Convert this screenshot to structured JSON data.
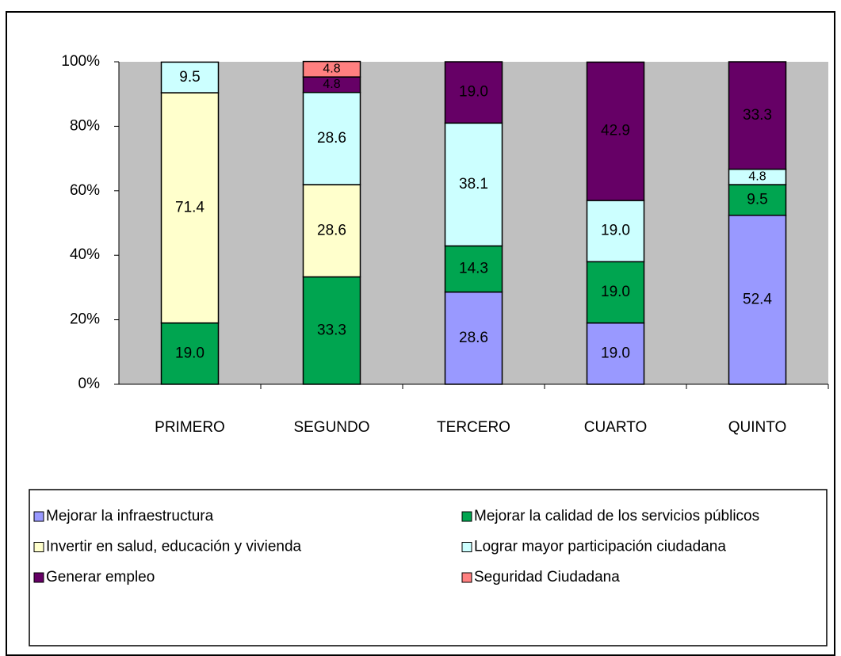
{
  "chart_data": {
    "type": "stacked_bar",
    "categories": [
      "PRIMERO",
      "SEGUNDO",
      "TERCERO",
      "CUARTO",
      "QUINTO"
    ],
    "series": [
      {
        "name": "Mejorar la infraestructura",
        "color": "#9999ff",
        "values": [
          null,
          null,
          28.6,
          19.0,
          52.4
        ],
        "value_labels": [
          null,
          null,
          "28.6",
          "19.0",
          "52.4"
        ]
      },
      {
        "name": "Mejorar la calidad de los servicios públicos",
        "color": "#00a550",
        "values": [
          19.0,
          33.3,
          14.3,
          19.0,
          9.5
        ],
        "value_labels": [
          "19.0",
          "33.3",
          "14.3",
          "19.0",
          "9.5"
        ]
      },
      {
        "name": "Invertir en salud, educación y vivienda",
        "color": "#ffffcc",
        "values": [
          71.4,
          28.6,
          null,
          null,
          null
        ],
        "value_labels": [
          "71.4",
          "28.6",
          null,
          null,
          null
        ]
      },
      {
        "name": "Lograr mayor participación ciudadana",
        "color": "#ccffff",
        "values": [
          9.5,
          28.6,
          38.1,
          19.0,
          4.8
        ],
        "value_labels": [
          "9.5",
          "28.6",
          "38.1",
          "19.0",
          "4.8"
        ]
      },
      {
        "name": "Generar empleo",
        "color": "#660066",
        "values": [
          null,
          4.8,
          19.0,
          42.9,
          33.3
        ],
        "value_labels": [
          null,
          "4.8",
          "19.0",
          "42.9",
          "33.3"
        ]
      },
      {
        "name": "Seguridad Ciudadana",
        "color": "#ff8080",
        "values": [
          null,
          4.8,
          null,
          null,
          null
        ],
        "value_labels": [
          null,
          "4.8",
          null,
          null,
          null
        ]
      }
    ],
    "ylim": [
      0,
      100
    ],
    "yticks": [
      {
        "value": 0,
        "label": "0%"
      },
      {
        "value": 20,
        "label": "20%"
      },
      {
        "value": 40,
        "label": "40%"
      },
      {
        "value": 60,
        "label": "60%"
      },
      {
        "value": 80,
        "label": "80%"
      },
      {
        "value": 100,
        "label": "100%"
      }
    ],
    "plot_background": "#c0c0c0",
    "legend": "bottom"
  }
}
